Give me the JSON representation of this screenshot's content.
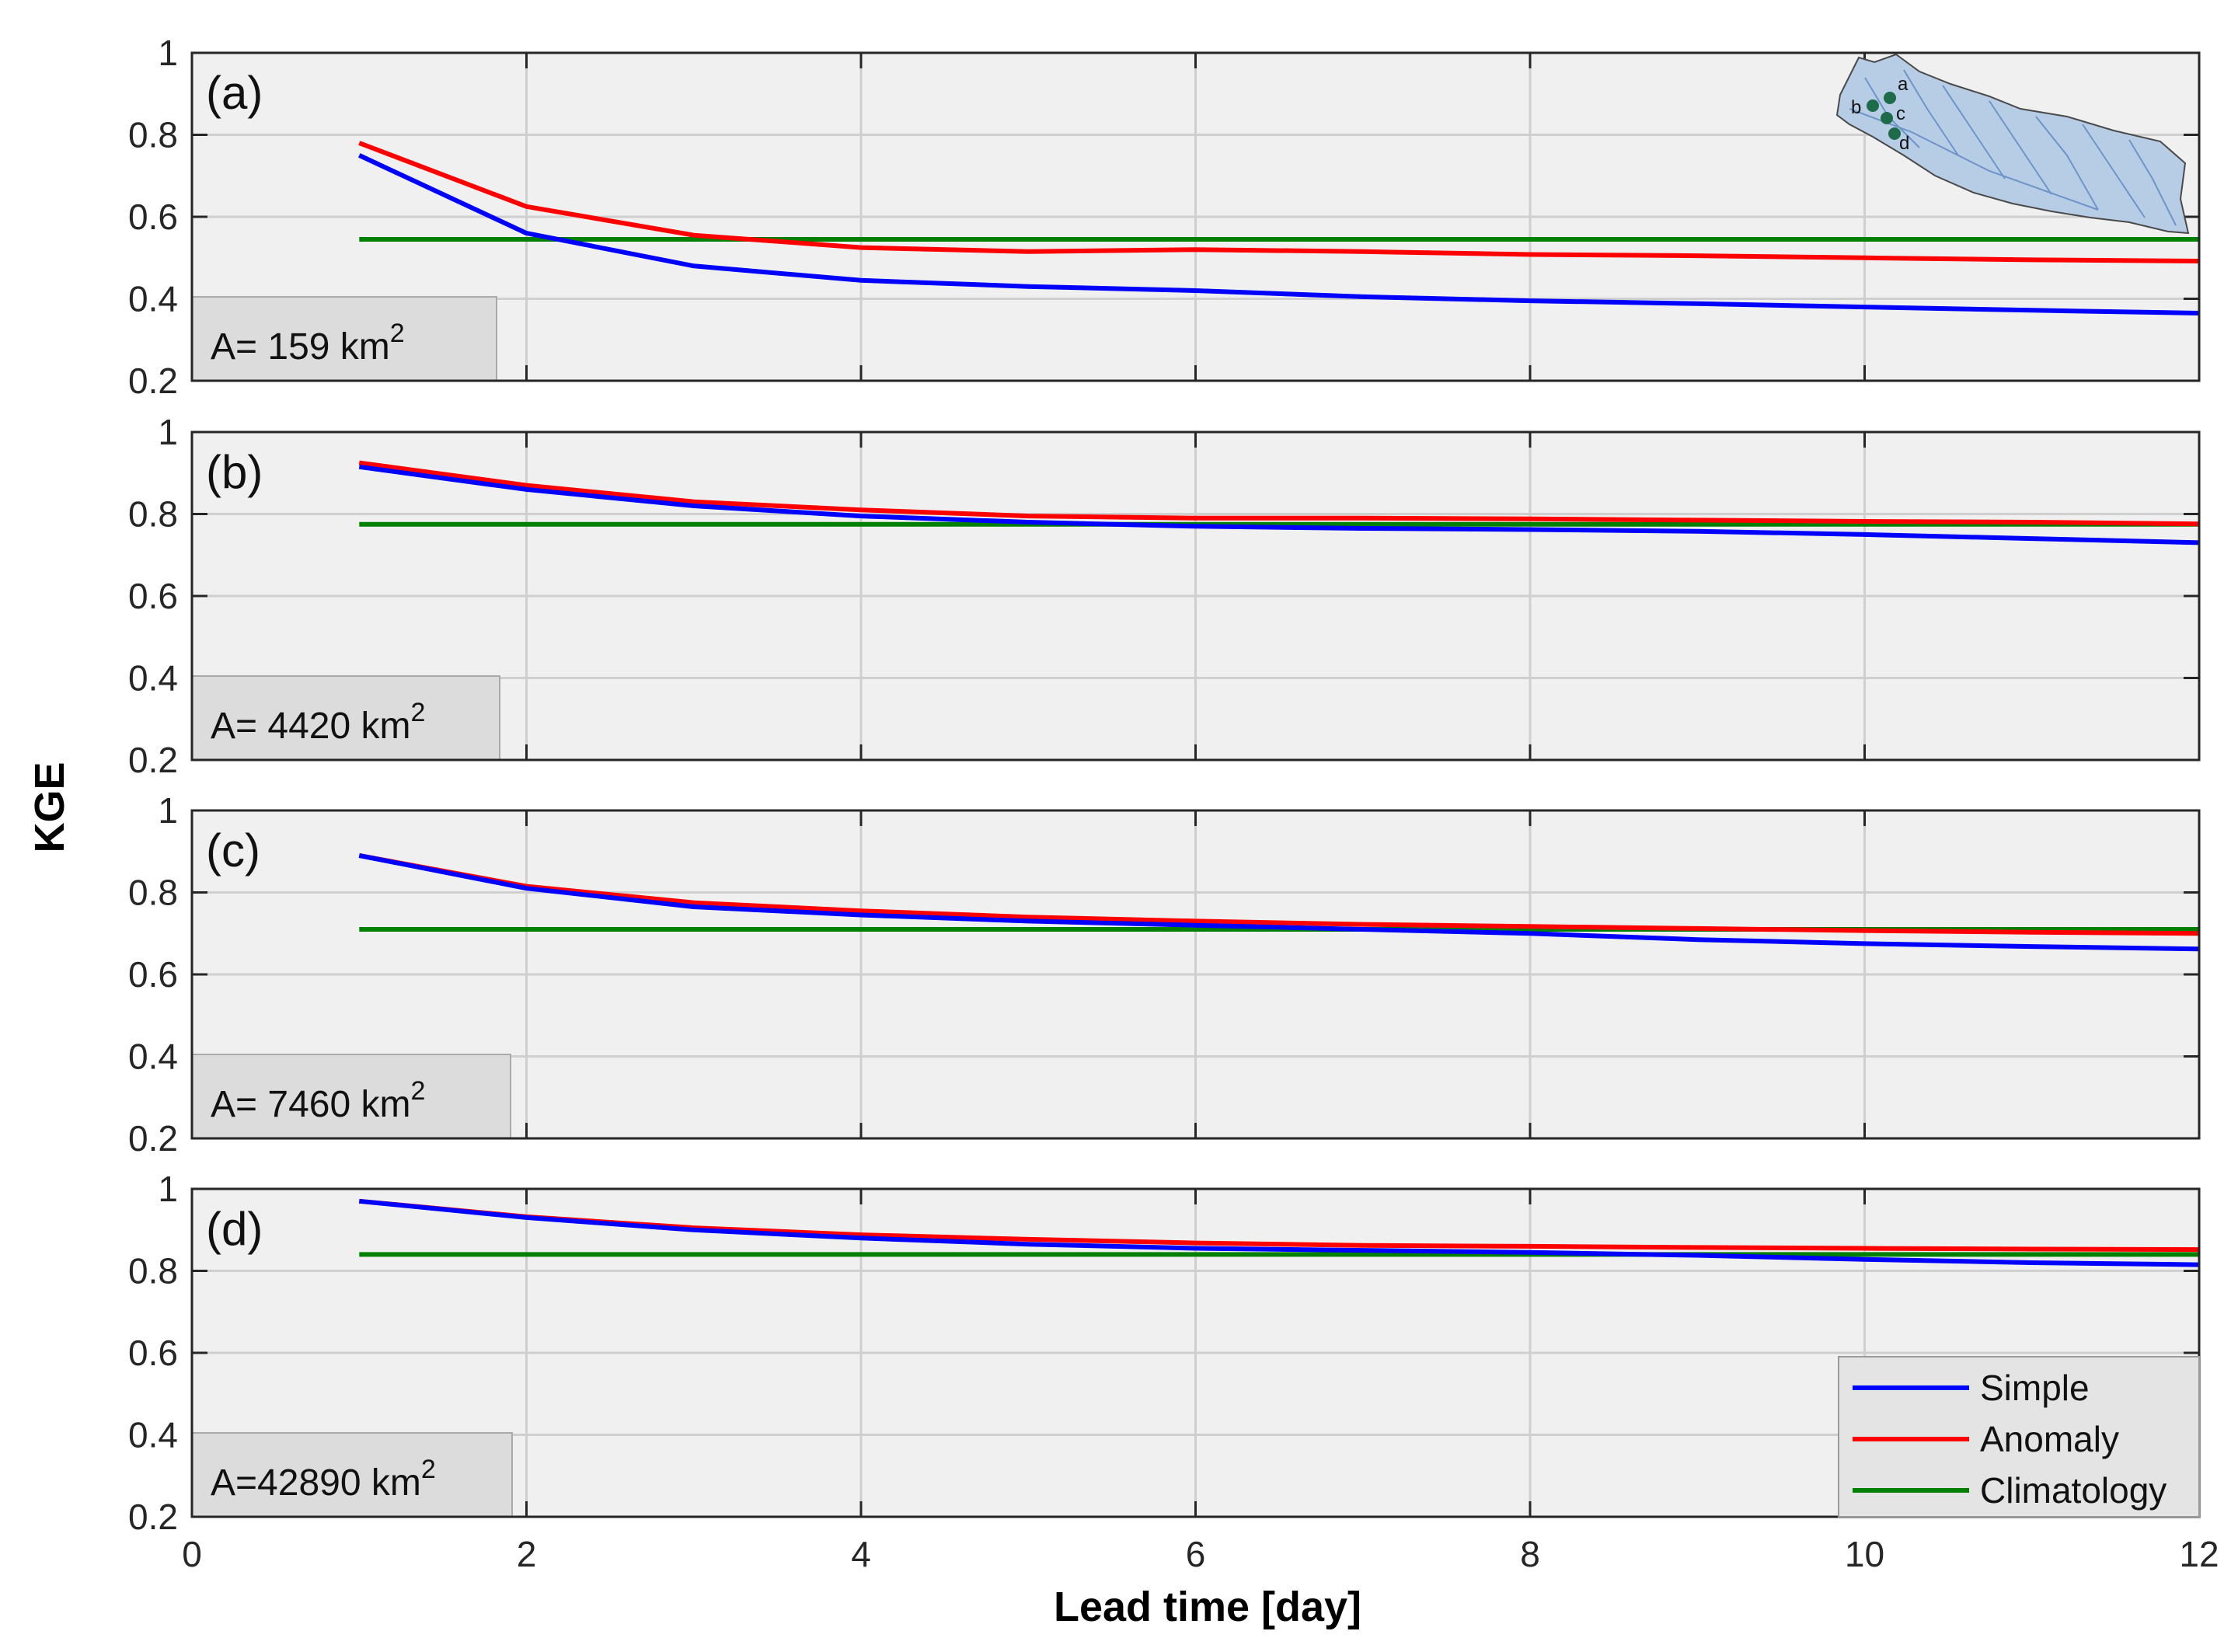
{
  "chart_data": {
    "type": "line",
    "xlabel": "Lead time [day]",
    "ylabel": "KGE",
    "xlim": [
      0,
      12
    ],
    "ylim": [
      0.2,
      1
    ],
    "xticks": [
      0,
      2,
      4,
      6,
      8,
      10,
      12
    ],
    "yticks": [
      0.2,
      0.4,
      0.6,
      0.8,
      1
    ],
    "grid": true,
    "legend": {
      "location": "bottom-right of panel (d)",
      "entries": [
        "Simple",
        "Anomaly",
        "Climatology"
      ]
    },
    "colors": {
      "Simple": "#0000ff",
      "Anomaly": "#ff0000",
      "Climatology": "#008000"
    },
    "x": [
      1,
      2,
      3,
      4,
      5,
      6,
      7,
      8,
      9,
      10,
      11,
      12
    ],
    "panels": [
      {
        "id": "a",
        "label": "(a)",
        "area_prefix": "A=  159 km",
        "area_sup": "2",
        "series": [
          {
            "name": "Simple",
            "values": [
              0.75,
              0.56,
              0.48,
              0.445,
              0.43,
              0.42,
              0.405,
              0.395,
              0.388,
              0.38,
              0.372,
              0.365
            ]
          },
          {
            "name": "Anomaly",
            "values": [
              0.78,
              0.625,
              0.555,
              0.525,
              0.515,
              0.52,
              0.515,
              0.508,
              0.505,
              0.5,
              0.495,
              0.492
            ]
          },
          {
            "name": "Climatology",
            "values": [
              0.545,
              0.545,
              0.545,
              0.545,
              0.545,
              0.545,
              0.545,
              0.545,
              0.545,
              0.545,
              0.545,
              0.545
            ]
          }
        ]
      },
      {
        "id": "b",
        "label": "(b)",
        "area_prefix": "A= 4420 km",
        "area_sup": "2",
        "series": [
          {
            "name": "Simple",
            "values": [
              0.915,
              0.86,
              0.82,
              0.795,
              0.78,
              0.77,
              0.765,
              0.762,
              0.758,
              0.75,
              0.74,
              0.73
            ]
          },
          {
            "name": "Anomaly",
            "values": [
              0.925,
              0.87,
              0.83,
              0.81,
              0.795,
              0.79,
              0.79,
              0.788,
              0.785,
              0.782,
              0.78,
              0.776
            ]
          },
          {
            "name": "Climatology",
            "values": [
              0.775,
              0.775,
              0.775,
              0.775,
              0.775,
              0.775,
              0.775,
              0.775,
              0.775,
              0.775,
              0.775,
              0.775
            ]
          }
        ]
      },
      {
        "id": "c",
        "label": "(c)",
        "area_prefix": "A= 7460 km",
        "area_sup": "2",
        "series": [
          {
            "name": "Simple",
            "values": [
              0.89,
              0.81,
              0.765,
              0.745,
              0.73,
              0.72,
              0.71,
              0.7,
              0.685,
              0.675,
              0.668,
              0.662
            ]
          },
          {
            "name": "Anomaly",
            "values": [
              0.89,
              0.815,
              0.775,
              0.755,
              0.74,
              0.73,
              0.722,
              0.717,
              0.712,
              0.707,
              0.703,
              0.7
            ]
          },
          {
            "name": "Climatology",
            "values": [
              0.71,
              0.71,
              0.71,
              0.71,
              0.71,
              0.71,
              0.71,
              0.71,
              0.71,
              0.71,
              0.71,
              0.71
            ]
          }
        ]
      },
      {
        "id": "d",
        "label": "(d)",
        "area_prefix": "A=42890 km",
        "area_sup": "2",
        "series": [
          {
            "name": "Simple",
            "values": [
              0.97,
              0.93,
              0.9,
              0.88,
              0.865,
              0.855,
              0.85,
              0.845,
              0.838,
              0.828,
              0.82,
              0.815
            ]
          },
          {
            "name": "Anomaly",
            "values": [
              0.97,
              0.932,
              0.905,
              0.888,
              0.877,
              0.868,
              0.862,
              0.86,
              0.857,
              0.855,
              0.853,
              0.852
            ]
          },
          {
            "name": "Climatology",
            "values": [
              0.84,
              0.84,
              0.84,
              0.84,
              0.84,
              0.84,
              0.84,
              0.84,
              0.84,
              0.84,
              0.84,
              0.84
            ]
          }
        ]
      }
    ],
    "inset_map": {
      "location": "top-right of panel (a)",
      "points": [
        "a",
        "b",
        "c",
        "d"
      ]
    }
  }
}
